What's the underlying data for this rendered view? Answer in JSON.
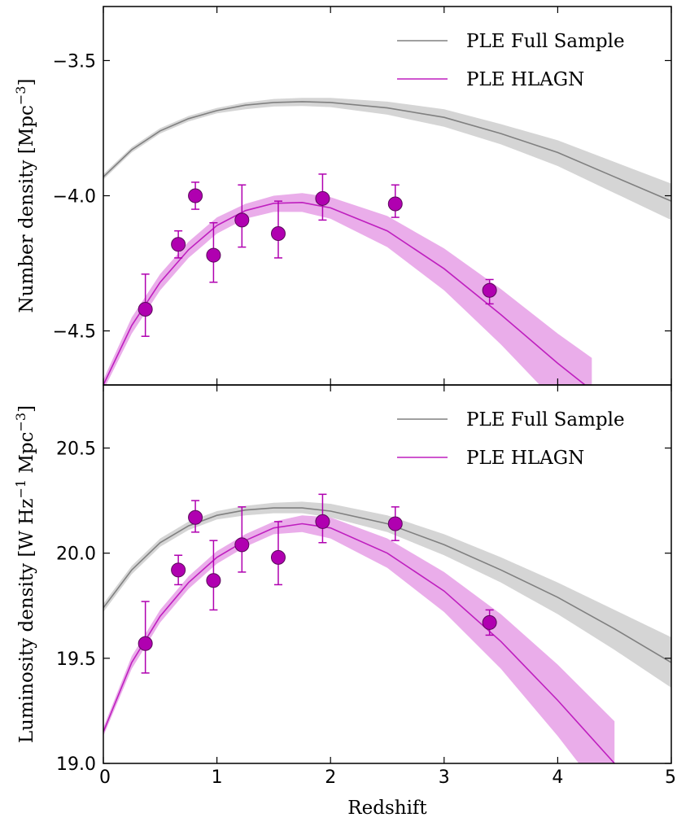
{
  "chart_data": [
    {
      "type": "line",
      "ylabel": "Number density [Mpc",
      "ylabel_sup": "−3",
      "ylabel_close": "]",
      "xlim": [
        0,
        5
      ],
      "ylim": [
        -4.7,
        -3.3
      ],
      "yticks": [
        -4.5,
        -4.0,
        -3.5
      ],
      "ytick_labels": [
        "−4.5",
        "−4.0",
        "−3.5"
      ],
      "legend_position": "top-right",
      "colors": {
        "full": "#808080",
        "full_band": "#d3d3d3",
        "hlagn": "#bf1fbf",
        "hlagn_band": "#e8a4e8",
        "points": "#b000b0"
      },
      "series": [
        {
          "name": "PLE Full Sample",
          "style": "line",
          "x": [
            0,
            0.25,
            0.5,
            0.75,
            1.0,
            1.25,
            1.5,
            1.75,
            2.0,
            2.5,
            3.0,
            3.5,
            4.0,
            4.5,
            5.0
          ],
          "y": [
            -3.93,
            -3.83,
            -3.76,
            -3.715,
            -3.685,
            -3.665,
            -3.655,
            -3.652,
            -3.655,
            -3.675,
            -3.71,
            -3.77,
            -3.84,
            -3.93,
            -4.02
          ],
          "lower": [
            -3.94,
            -3.84,
            -3.77,
            -3.725,
            -3.695,
            -3.68,
            -3.67,
            -3.668,
            -3.672,
            -3.7,
            -3.745,
            -3.81,
            -3.89,
            -3.99,
            -4.09
          ],
          "upper": [
            -3.92,
            -3.82,
            -3.75,
            -3.705,
            -3.675,
            -3.655,
            -3.642,
            -3.638,
            -3.638,
            -3.652,
            -3.68,
            -3.735,
            -3.795,
            -3.875,
            -3.955
          ]
        },
        {
          "name": "PLE HLAGN",
          "style": "line",
          "x": [
            0,
            0.25,
            0.5,
            0.75,
            1.0,
            1.25,
            1.5,
            1.75,
            2.0,
            2.5,
            3.0,
            3.5,
            4.0,
            4.3
          ],
          "y": [
            -4.7,
            -4.48,
            -4.32,
            -4.2,
            -4.11,
            -4.055,
            -4.028,
            -4.025,
            -4.045,
            -4.13,
            -4.27,
            -4.44,
            -4.62,
            -4.72
          ],
          "lower": [
            -4.72,
            -4.51,
            -4.35,
            -4.23,
            -4.14,
            -4.085,
            -4.06,
            -4.06,
            -4.085,
            -4.19,
            -4.35,
            -4.55,
            -4.77,
            -4.9
          ],
          "upper": [
            -4.68,
            -4.45,
            -4.29,
            -4.17,
            -4.08,
            -4.03,
            -4.0,
            -3.99,
            -4.005,
            -4.075,
            -4.195,
            -4.345,
            -4.51,
            -4.6
          ]
        },
        {
          "name": "",
          "style": "errorbar",
          "x": [
            0.37,
            0.66,
            0.81,
            0.97,
            1.22,
            1.54,
            1.93,
            2.57,
            3.4
          ],
          "y": [
            -4.42,
            -4.18,
            -4.0,
            -4.22,
            -4.09,
            -4.14,
            -4.01,
            -4.03,
            -4.35
          ],
          "yerr_low": [
            0.1,
            0.05,
            0.05,
            0.1,
            0.1,
            0.09,
            0.08,
            0.05,
            0.05
          ],
          "yerr_high": [
            0.13,
            0.05,
            0.05,
            0.12,
            0.13,
            0.12,
            0.09,
            0.07,
            0.04
          ]
        }
      ]
    },
    {
      "type": "line",
      "xlabel": "Redshift",
      "ylabel": "Luminosity density [W Hz",
      "ylabel_sup1": "−1",
      "ylabel_mid": " Mpc",
      "ylabel_sup2": "−3",
      "ylabel_close": "]",
      "xlim": [
        0,
        5
      ],
      "ylim": [
        19.0,
        20.8
      ],
      "xticks": [
        0,
        1,
        2,
        3,
        4,
        5
      ],
      "xtick_labels": [
        "0",
        "1",
        "2",
        "3",
        "4",
        "5"
      ],
      "yticks": [
        19.0,
        19.5,
        20.0,
        20.5
      ],
      "ytick_labels": [
        "19.0",
        "19.5",
        "20.0",
        "20.5"
      ],
      "legend_position": "top-right",
      "series": [
        {
          "name": "PLE Full Sample",
          "style": "line",
          "x": [
            0,
            0.25,
            0.5,
            0.75,
            1.0,
            1.25,
            1.5,
            1.75,
            2.0,
            2.5,
            3.0,
            3.5,
            4.0,
            4.5,
            5.0
          ],
          "y": [
            19.74,
            19.92,
            20.05,
            20.13,
            20.18,
            20.205,
            20.215,
            20.215,
            20.2,
            20.14,
            20.04,
            19.92,
            19.79,
            19.64,
            19.48
          ],
          "lower": [
            19.72,
            19.9,
            20.03,
            20.11,
            20.16,
            20.18,
            20.19,
            20.19,
            20.17,
            20.1,
            19.99,
            19.86,
            19.71,
            19.54,
            19.36
          ],
          "upper": [
            19.76,
            19.94,
            20.07,
            20.15,
            20.2,
            20.225,
            20.24,
            20.245,
            20.235,
            20.18,
            20.09,
            19.98,
            19.86,
            19.73,
            19.6
          ]
        },
        {
          "name": "PLE HLAGN",
          "style": "line",
          "x": [
            0,
            0.25,
            0.5,
            0.75,
            1.0,
            1.25,
            1.5,
            1.75,
            2.0,
            2.5,
            3.0,
            3.5,
            4.0,
            4.5
          ],
          "y": [
            19.15,
            19.48,
            19.7,
            19.86,
            19.98,
            20.06,
            20.12,
            20.14,
            20.12,
            20.0,
            19.82,
            19.58,
            19.3,
            19.0
          ],
          "lower": [
            19.13,
            19.45,
            19.67,
            19.83,
            19.95,
            20.03,
            20.09,
            20.1,
            20.07,
            19.93,
            19.72,
            19.45,
            19.13,
            18.78
          ],
          "upper": [
            19.17,
            19.51,
            19.73,
            19.89,
            20.01,
            20.09,
            20.15,
            20.18,
            20.17,
            20.07,
            19.91,
            19.71,
            19.47,
            19.2
          ]
        },
        {
          "name": "",
          "style": "errorbar",
          "x": [
            0.37,
            0.66,
            0.81,
            0.97,
            1.22,
            1.54,
            1.93,
            2.57,
            3.4
          ],
          "y": [
            19.57,
            19.92,
            20.17,
            19.87,
            20.04,
            19.98,
            20.15,
            20.14,
            19.67
          ],
          "yerr_low": [
            0.14,
            0.07,
            0.07,
            0.14,
            0.13,
            0.13,
            0.1,
            0.08,
            0.06
          ],
          "yerr_high": [
            0.2,
            0.07,
            0.08,
            0.19,
            0.18,
            0.17,
            0.13,
            0.08,
            0.06
          ]
        }
      ]
    }
  ]
}
